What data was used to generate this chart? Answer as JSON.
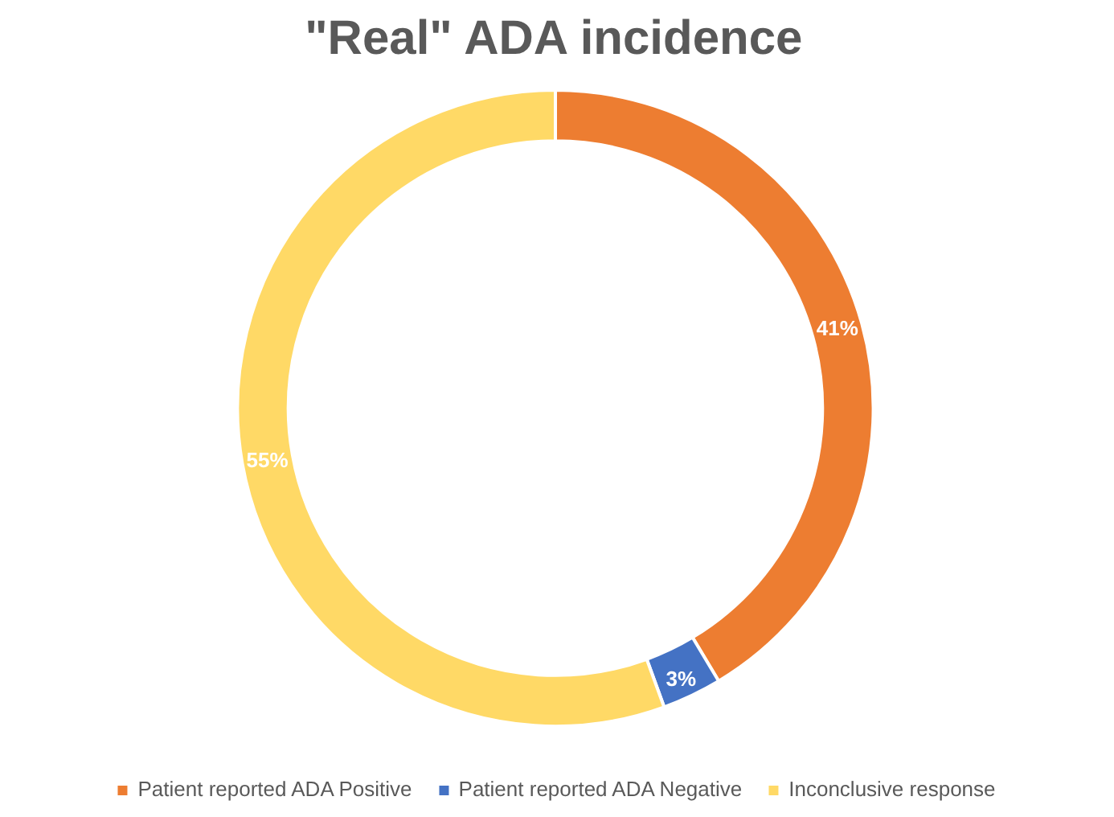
{
  "chart_data": {
    "type": "donut",
    "title": "\"Real\" ADA incidence",
    "categories": [
      "Patient reported ADA Positive",
      "Patient reported ADA Negative",
      "Inconclusive response"
    ],
    "values": [
      41,
      3,
      55
    ],
    "colors": [
      "#ed7d31",
      "#4472c4",
      "#ffd966"
    ],
    "value_labels": [
      "41%",
      "3%",
      "55%"
    ],
    "legend": "bottom"
  }
}
